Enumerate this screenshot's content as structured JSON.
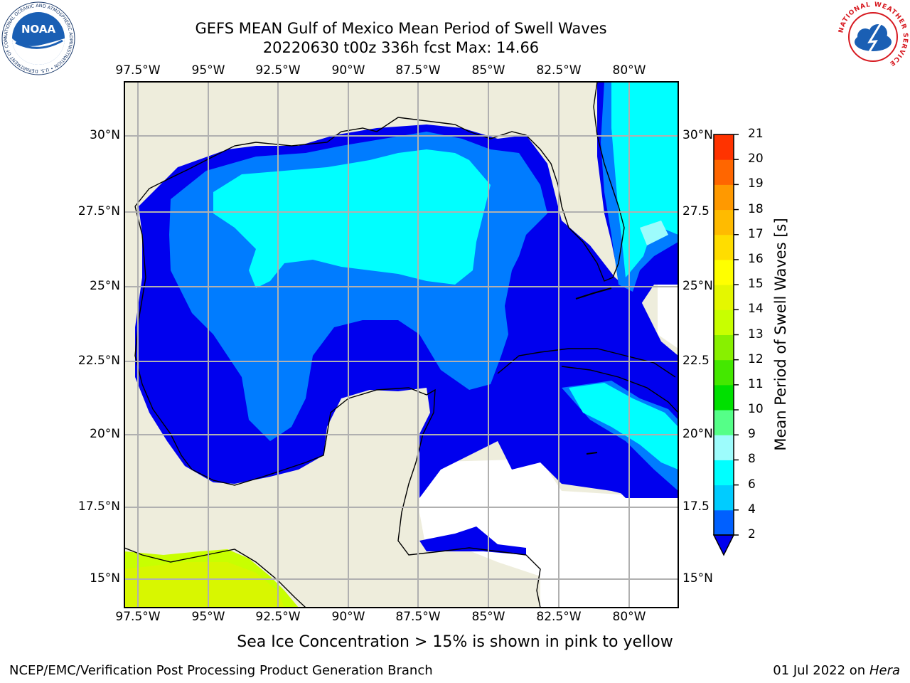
{
  "header": {
    "title_line1": "GEFS MEAN Gulf of Mexico Mean Period of Swell Waves",
    "title_line2": "20220630 t00z 336h fcst   Max: 14.66"
  },
  "logos": {
    "noaa_text": "NOAA",
    "noaa_ring": "NATIONAL OCEANIC AND ATMOSPHERIC ADMINISTRATION • U.S. DEPARTMENT OF COMMERCE",
    "nws_ring": "NATIONAL WEATHER SERVICE"
  },
  "map": {
    "lon_ticks": [
      "97.5°W",
      "95°W",
      "92.5°W",
      "90°W",
      "87.5°W",
      "85°W",
      "82.5°W",
      "80°W"
    ],
    "lat_ticks_left": [
      "30°N",
      "27.5°N",
      "25°N",
      "22.5°N",
      "20°N",
      "17.5°N",
      "15°N"
    ],
    "lat_ticks_right": [
      "30°N",
      "27.5",
      "25°N",
      "22.5",
      "20°N",
      "17.5",
      "15°N"
    ],
    "colors": {
      "land": "#eeeddc",
      "ocean_low": "#0000ee",
      "ocean_mid": "#007cff",
      "ocean_high": "#00ffff",
      "ocean_pale": "#9dfcfc",
      "green_swell": "#c8ff00",
      "grid": "#b0b0b0"
    }
  },
  "colorbar": {
    "label": "Mean Period of Swell Waves [s]",
    "ticks": [
      "2",
      "4",
      "6",
      "8",
      "9",
      "10",
      "11",
      "12",
      "13",
      "14",
      "15",
      "16",
      "17",
      "18",
      "19",
      "20",
      "21"
    ],
    "colors": [
      "#0060ff",
      "#00ccff",
      "#00ffff",
      "#9dfcfc",
      "#55ff88",
      "#00e000",
      "#44e800",
      "#88f000",
      "#c8ff00",
      "#e4f700",
      "#ffff00",
      "#ffdd00",
      "#ffbb00",
      "#ff9900",
      "#ff6600",
      "#ff3300"
    ]
  },
  "footer": {
    "ice_note": "Sea Ice Concentration > 15% is shown in pink to yellow",
    "left": "NCEP/EMC/Verification Post Processing Product Generation Branch",
    "right_date": "01 Jul 2022 on ",
    "right_host": "Hera"
  }
}
